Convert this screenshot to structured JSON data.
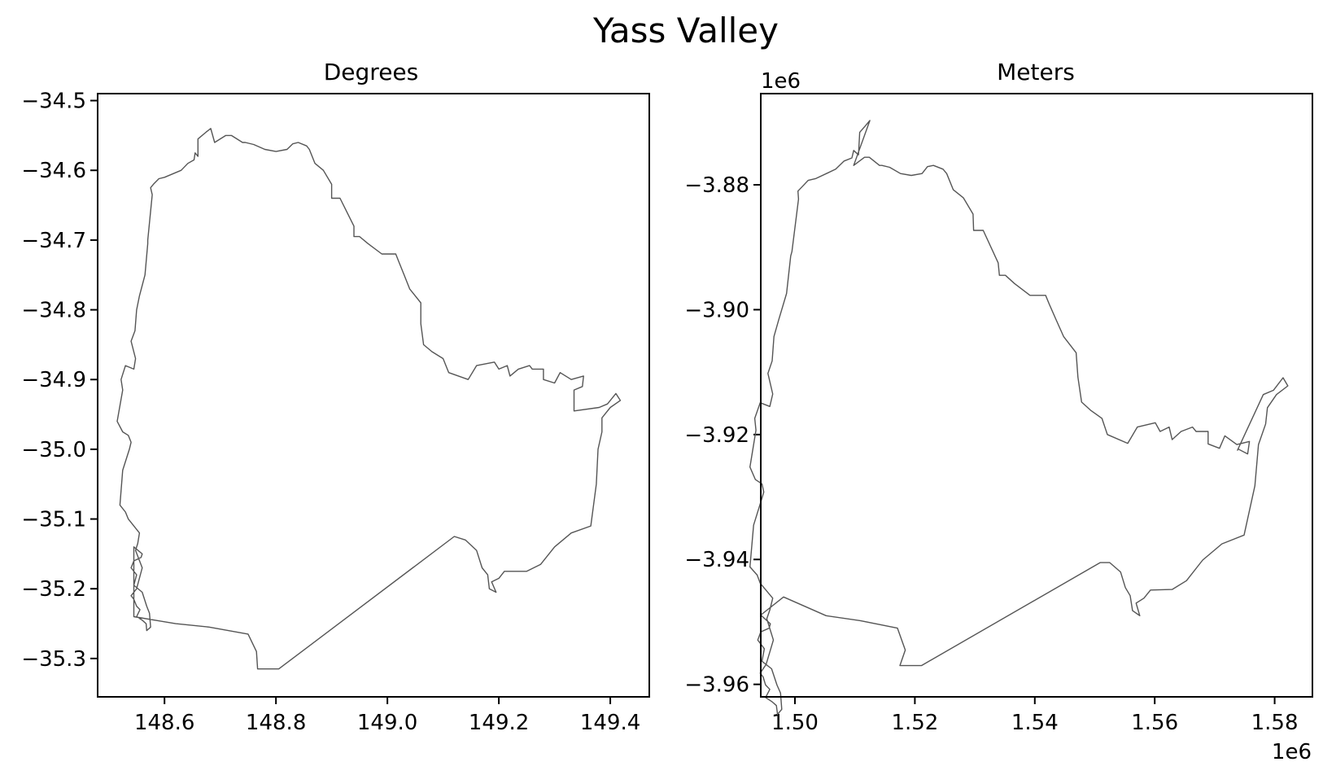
{
  "figure": {
    "title": "Yass Valley"
  },
  "chart_data": [
    {
      "type": "line",
      "title": "Degrees",
      "xlabel": "",
      "ylabel": "",
      "xlim": [
        148.48,
        149.47
      ],
      "ylim": [
        -35.355,
        -34.49
      ],
      "xticks": [
        148.6,
        148.8,
        149.0,
        149.2,
        149.4
      ],
      "xtick_labels": [
        "148.6",
        "148.8",
        "149.0",
        "149.2",
        "149.4"
      ],
      "yticks": [
        -34.5,
        -34.6,
        -34.7,
        -34.8,
        -34.9,
        -35.0,
        -35.1,
        -35.2,
        -35.3
      ],
      "ytick_labels": [
        "−34.5",
        "−34.6",
        "−34.7",
        "−34.8",
        "−34.9",
        "−35.0",
        "−35.1",
        "−35.2",
        "−35.3"
      ],
      "x_offset_text": "",
      "y_offset_text": "",
      "grid": false,
      "series": [
        {
          "color": "#555555",
          "x": [
            148.683,
            148.675,
            148.66,
            148.66,
            148.655,
            148.653,
            148.642,
            148.63,
            148.6,
            148.59,
            148.58,
            148.575,
            148.578,
            148.57,
            148.57,
            148.565,
            148.555,
            148.55,
            148.547,
            148.54,
            148.548,
            148.545,
            148.53,
            148.522,
            148.525,
            148.515,
            148.525,
            148.535,
            148.54,
            148.537,
            148.525,
            148.52,
            148.53,
            148.535,
            148.555,
            148.552,
            148.548,
            148.56,
            148.55,
            148.54,
            148.545,
            148.55,
            148.556,
            148.55,
            148.56,
            148.567,
            148.568,
            148.575,
            148.573,
            148.568,
            148.56,
            148.545,
            148.55,
            148.54,
            148.545,
            148.558,
            148.56,
            148.545,
            148.545,
            148.62,
            148.68,
            148.75,
            148.765,
            148.767,
            148.805,
            149.12,
            149.14,
            149.16,
            149.17,
            149.18,
            149.183,
            149.195,
            149.187,
            149.2,
            149.21,
            149.25,
            149.275,
            149.3,
            149.33,
            149.365,
            149.375,
            149.378,
            149.385,
            149.385,
            149.4,
            149.418,
            149.41,
            149.395,
            149.38,
            149.335,
            149.335,
            149.35,
            149.352,
            149.33,
            149.31,
            149.3,
            149.28,
            149.28,
            149.26,
            149.255,
            149.235,
            149.22,
            149.215,
            149.2,
            149.192,
            149.16,
            149.145,
            149.11,
            149.1,
            149.08,
            149.065,
            149.06,
            149.06,
            149.04,
            149.03,
            149.02,
            149.015,
            148.99,
            148.965,
            148.95,
            148.94,
            148.94,
            148.915,
            148.9,
            148.9,
            148.885,
            148.87,
            148.86,
            148.855,
            148.84,
            148.83,
            148.82,
            148.8,
            148.78,
            148.76,
            148.745,
            148.74,
            148.72,
            148.71,
            148.69,
            148.683
          ],
          "y": [
            -34.54,
            -34.545,
            -34.555,
            -34.58,
            -34.575,
            -34.585,
            -34.59,
            -34.6,
            -34.61,
            -34.612,
            -34.62,
            -34.625,
            -34.635,
            -34.7,
            -34.705,
            -34.75,
            -34.78,
            -34.8,
            -34.83,
            -34.845,
            -34.87,
            -34.885,
            -34.88,
            -34.9,
            -34.915,
            -34.96,
            -34.975,
            -34.98,
            -34.99,
            -35.0,
            -35.03,
            -35.08,
            -35.09,
            -35.1,
            -35.12,
            -35.135,
            -35.145,
            -35.17,
            -35.2,
            -35.21,
            -35.215,
            -35.225,
            -35.23,
            -35.24,
            -35.245,
            -35.25,
            -35.26,
            -35.255,
            -35.235,
            -35.225,
            -35.205,
            -35.195,
            -35.18,
            -35.17,
            -35.16,
            -35.155,
            -35.15,
            -35.14,
            -35.24,
            -35.25,
            -35.255,
            -35.265,
            -35.29,
            -35.315,
            -35.315,
            -35.125,
            -35.13,
            -35.145,
            -35.17,
            -35.18,
            -35.2,
            -35.205,
            -35.19,
            -35.185,
            -35.175,
            -35.175,
            -35.165,
            -35.14,
            -35.12,
            -35.11,
            -35.05,
            -35.0,
            -34.975,
            -34.955,
            -34.94,
            -34.93,
            -34.92,
            -34.935,
            -34.94,
            -34.945,
            -34.915,
            -34.91,
            -34.895,
            -34.9,
            -34.89,
            -34.905,
            -34.9,
            -34.885,
            -34.885,
            -34.88,
            -34.885,
            -34.895,
            -34.88,
            -34.885,
            -34.875,
            -34.88,
            -34.9,
            -34.89,
            -34.87,
            -34.86,
            -34.85,
            -34.82,
            -34.79,
            -34.77,
            -34.75,
            -34.73,
            -34.72,
            -34.72,
            -34.705,
            -34.695,
            -34.695,
            -34.68,
            -34.64,
            -34.64,
            -34.62,
            -34.6,
            -34.59,
            -34.57,
            -34.565,
            -34.56,
            -34.562,
            -34.57,
            -34.573,
            -34.57,
            -34.563,
            -34.56,
            -34.56,
            -34.55,
            -34.55,
            -34.56,
            -34.54
          ]
        }
      ]
    },
    {
      "type": "line",
      "title": "Meters",
      "xlabel": "",
      "ylabel": "",
      "xlim": [
        1.4943,
        1.5863
      ],
      "ylim": [
        -3.962,
        -3.8654
      ],
      "xticks": [
        1.5,
        1.52,
        1.54,
        1.56,
        1.58
      ],
      "xtick_labels": [
        "1.50",
        "1.52",
        "1.54",
        "1.56",
        "1.58"
      ],
      "yticks": [
        -3.88,
        -3.9,
        -3.92,
        -3.94,
        -3.96
      ],
      "ytick_labels": [
        "−3.88",
        "−3.90",
        "−3.92",
        "−3.94",
        "−3.96"
      ],
      "x_offset_text": "1e6",
      "y_offset_text": "1e6",
      "grid": false,
      "series": [
        {
          "color": "#555555",
          "x": [
            1.5125,
            1.5118,
            1.5108,
            1.5106,
            1.5098,
            1.5095,
            1.5082,
            1.5068,
            1.5035,
            1.5022,
            1.5012,
            1.5005,
            1.5006,
            1.4995,
            1.4993,
            1.4986,
            1.4973,
            1.4965,
            1.4962,
            1.4955,
            1.4963,
            1.4958,
            1.4942,
            1.4933,
            1.4935,
            1.4925,
            1.4934,
            1.4945,
            1.4948,
            1.4944,
            1.4931,
            1.4925,
            1.4937,
            1.4942,
            1.4963,
            1.4958,
            1.4953,
            1.4964,
            1.4952,
            1.4942,
            1.4947,
            1.4951,
            1.4958,
            1.4951,
            1.4962,
            1.4969,
            1.4971,
            1.4978,
            1.4976,
            1.497,
            1.4961,
            1.4945,
            1.4949,
            1.4938,
            1.4943,
            1.4957,
            1.4959,
            1.4943,
            1.4981,
            1.5052,
            1.5109,
            1.5171,
            1.5184,
            1.5175,
            1.5211,
            1.5509,
            1.5525,
            1.5543,
            1.5551,
            1.5559,
            1.5563,
            1.5575,
            1.5569,
            1.5582,
            1.5593,
            1.5629,
            1.5653,
            1.568,
            1.5712,
            1.5749,
            1.5767,
            1.5773,
            1.5785,
            1.5788,
            1.5803,
            1.5822,
            1.5814,
            1.5798,
            1.5781,
            1.5738,
            1.5739,
            1.5755,
            1.5758,
            1.5737,
            1.5717,
            1.5708,
            1.5689,
            1.5689,
            1.5669,
            1.5663,
            1.5644,
            1.5629,
            1.5624,
            1.5609,
            1.5601,
            1.5571,
            1.5555,
            1.5521,
            1.5512,
            1.5493,
            1.5478,
            1.5472,
            1.5469,
            1.5448,
            1.5436,
            1.5424,
            1.5418,
            1.5392,
            1.5366,
            1.5351,
            1.5341,
            1.5339,
            1.5314,
            1.5298,
            1.5297,
            1.5281,
            1.5264,
            1.5253,
            1.5247,
            1.5231,
            1.5221,
            1.5212,
            1.5194,
            1.5176,
            1.5158,
            1.5145,
            1.5141,
            1.5124,
            1.5116,
            1.5098,
            1.5125
          ],
          "y": [
            -3.8697,
            -3.8705,
            -3.8716,
            -3.8752,
            -3.8745,
            -3.8757,
            -3.8762,
            -3.8775,
            -3.879,
            -3.8793,
            -3.8803,
            -3.881,
            -3.8823,
            -3.8907,
            -3.8914,
            -3.8974,
            -3.9016,
            -3.9043,
            -3.9082,
            -3.9102,
            -3.9135,
            -3.9155,
            -3.9149,
            -3.9174,
            -3.9193,
            -3.9252,
            -3.9272,
            -3.9279,
            -3.9292,
            -3.9305,
            -3.9345,
            -3.9412,
            -3.9425,
            -3.9438,
            -3.9462,
            -3.9481,
            -3.9495,
            -3.9529,
            -3.9568,
            -3.9582,
            -3.9588,
            -3.9601,
            -3.9608,
            -3.9621,
            -3.9628,
            -3.9634,
            -3.9648,
            -3.964,
            -3.9614,
            -3.9601,
            -3.9575,
            -3.9563,
            -3.9543,
            -3.9529,
            -3.9516,
            -3.951,
            -3.9503,
            -3.9489,
            -3.946,
            -3.949,
            -3.9498,
            -3.951,
            -3.9545,
            -3.957,
            -3.957,
            -3.9405,
            -3.9405,
            -3.942,
            -3.9445,
            -3.9458,
            -3.9482,
            -3.949,
            -3.947,
            -3.9462,
            -3.9449,
            -3.9448,
            -3.9434,
            -3.9401,
            -3.9375,
            -3.9361,
            -3.9282,
            -3.9216,
            -3.9183,
            -3.9157,
            -3.9136,
            -3.9122,
            -3.9109,
            -3.9129,
            -3.9136,
            -3.9225,
            -3.9223,
            -3.9231,
            -3.9211,
            -3.9216,
            -3.9202,
            -3.9222,
            -3.9215,
            -3.9195,
            -3.9195,
            -3.9188,
            -3.9195,
            -3.9208,
            -3.9188,
            -3.9195,
            -3.9181,
            -3.9188,
            -3.9214,
            -3.92,
            -3.9174,
            -3.9161,
            -3.9148,
            -3.9108,
            -3.9069,
            -3.9043,
            -3.9017,
            -3.8991,
            -3.8977,
            -3.8977,
            -3.8958,
            -3.8945,
            -3.8945,
            -3.8925,
            -3.8873,
            -3.8873,
            -3.8847,
            -3.8821,
            -3.8808,
            -3.8782,
            -3.8775,
            -3.8769,
            -3.8771,
            -3.8782,
            -3.8785,
            -3.8782,
            -3.8772,
            -3.8769,
            -3.8769,
            -3.8756,
            -3.8756,
            -3.8769,
            -3.8697
          ]
        }
      ]
    }
  ]
}
